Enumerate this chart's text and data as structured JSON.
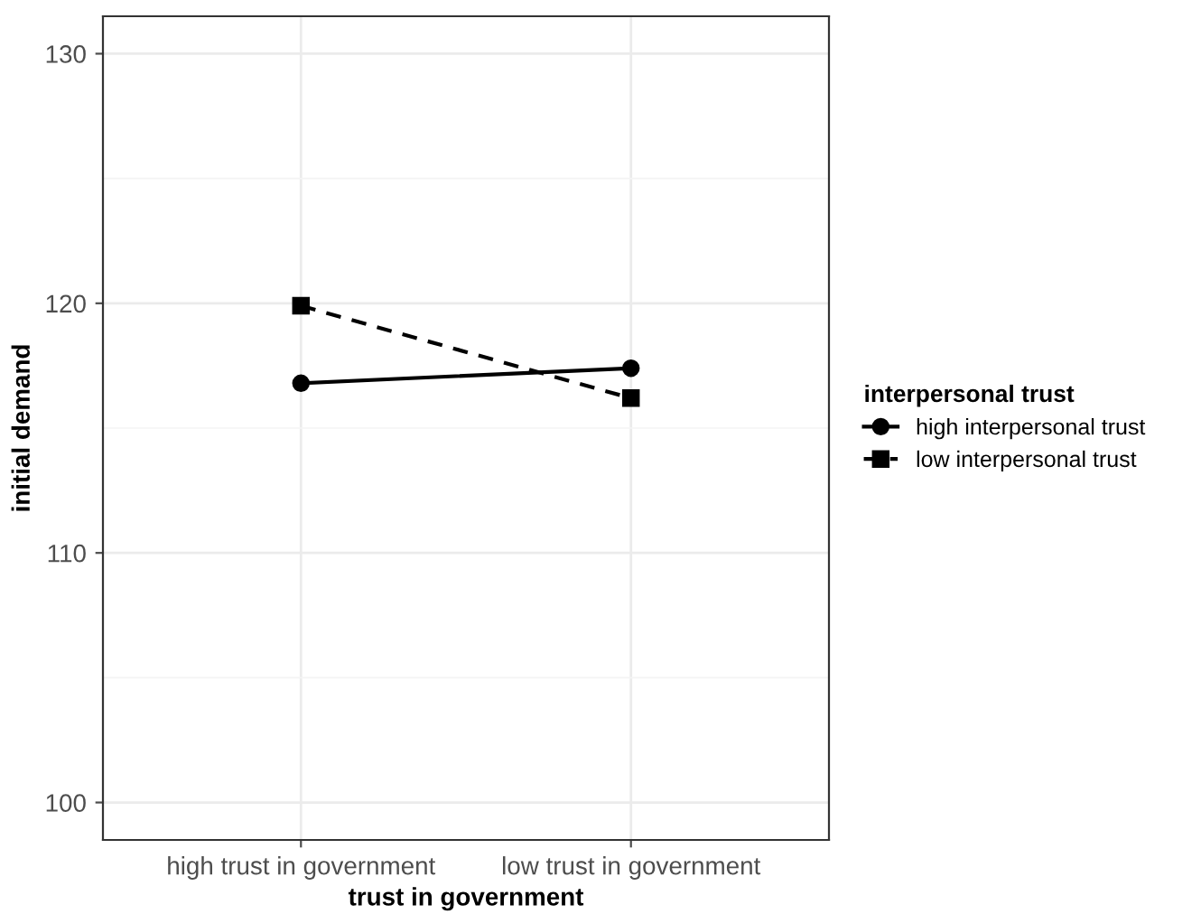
{
  "chart_data": {
    "type": "line",
    "xlabel": "trust in government",
    "ylabel": "initial demand",
    "legend_title": "interpersonal trust",
    "categories": [
      "high trust in government",
      "low trust in government"
    ],
    "series": [
      {
        "name": "high interpersonal trust",
        "color": "#000000",
        "values": [
          116.8,
          117.4
        ],
        "marker": "circle",
        "line_style": "solid"
      },
      {
        "name": "low interpersonal trust",
        "color": "#000000",
        "values": [
          119.9,
          116.2
        ],
        "marker": "square",
        "line_style": "dashed"
      }
    ],
    "ylim": [
      98.5,
      131.5
    ],
    "yticks": [
      100,
      110,
      120,
      130
    ],
    "grid": true,
    "legend": "right"
  }
}
